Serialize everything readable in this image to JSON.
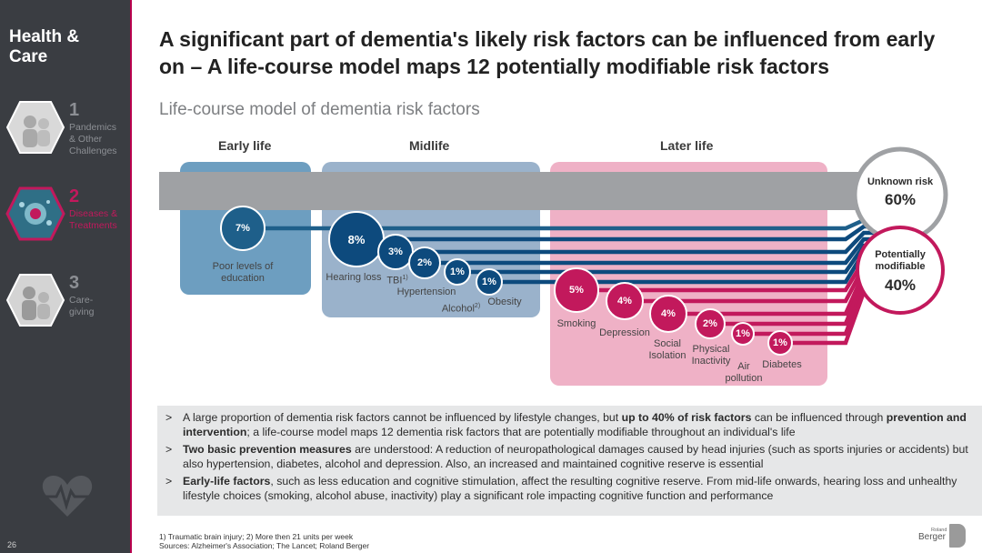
{
  "sidebar": {
    "title": "Health &\nCare",
    "items": [
      {
        "number": "1",
        "label": "Pandemics\n& Other\nChallenges",
        "icon": "people-photo-icon"
      },
      {
        "number": "2",
        "label": "Diseases &\nTreatments",
        "icon": "virus-icon"
      },
      {
        "number": "3",
        "label": "Care-\ngiving",
        "icon": "caregiving-photo-icon"
      }
    ],
    "footer_icon": "heartbeat-icon",
    "page_number": "26"
  },
  "header": {
    "title": "A significant part of dementia's likely risk factors can be influenced from early on – A life-course model maps 12 potentially modifiable risk factors",
    "subtitle": "Life-course model of dementia risk factors"
  },
  "diagram": {
    "phases": [
      "Early life",
      "Midlife",
      "Later life"
    ],
    "unknown": {
      "label": "Unknown risk",
      "value": "60%"
    },
    "modifiable": {
      "label": "Potentially\nmodifiable",
      "value": "40%"
    },
    "factors": [
      {
        "phase": "Early life",
        "label": "Poor levels of\neducation",
        "value": "7%"
      },
      {
        "phase": "Midlife",
        "label": "Hearing loss",
        "value": "8%"
      },
      {
        "phase": "Midlife",
        "label": "TBI",
        "sup": "1)",
        "value": "3%"
      },
      {
        "phase": "Midlife",
        "label": "Hypertension",
        "value": "2%"
      },
      {
        "phase": "Midlife",
        "label": "Alcohol",
        "sup": "2)",
        "value": "1%"
      },
      {
        "phase": "Midlife",
        "label": "Obesity",
        "value": "1%"
      },
      {
        "phase": "Later life",
        "label": "Smoking",
        "value": "5%"
      },
      {
        "phase": "Later life",
        "label": "Depression",
        "value": "4%"
      },
      {
        "phase": "Later life",
        "label": "Social\nIsolation",
        "value": "4%"
      },
      {
        "phase": "Later life",
        "label": "Physical\nInactivity",
        "value": "2%"
      },
      {
        "phase": "Later life",
        "label": "Air\npollution",
        "value": "1%"
      },
      {
        "phase": "Later life",
        "label": "Diabetes",
        "value": "1%"
      }
    ],
    "colors": {
      "early": "#1e5f8a",
      "mid": "#0d4a7d",
      "late": "#c2195c",
      "unknown": "#9fa1a4"
    }
  },
  "bullets": [
    {
      "segments": [
        {
          "t": "A large proportion of dementia risk factors cannot be influenced by lifestyle changes, but "
        },
        {
          "t": "up to 40% of risk factors",
          "b": true
        },
        {
          "t": " can be influenced through "
        },
        {
          "t": "prevention and intervention",
          "b": true
        },
        {
          "t": "; a life-course model maps 12 dementia risk factors that are potentially modifiable throughout an individual's life"
        }
      ]
    },
    {
      "segments": [
        {
          "t": "Two basic prevention measures",
          "b": true
        },
        {
          "t": " are understood: A reduction of neuropathological damages caused by head injuries (such as sports injuries or accidents) but also hypertension, diabetes, alcohol and depression. Also, an increased and maintained cognitive reserve is essential"
        }
      ]
    },
    {
      "segments": [
        {
          "t": "Early-life factors",
          "b": true
        },
        {
          "t": ", such as less education and cognitive stimulation, affect the resulting cognitive reserve. From mid-life onwards, hearing loss and unhealthy lifestyle choices (smoking, alcohol abuse, inactivity) play a significant role impacting cognitive function and performance"
        }
      ]
    }
  ],
  "footnote": {
    "line1": "1) Traumatic brain injury; 2) More then 21 units per week",
    "line2": "Sources: Alzheimer's Association; The Lancet; Roland Berger"
  },
  "logo": {
    "small": "Roland",
    "big": "Berger"
  }
}
